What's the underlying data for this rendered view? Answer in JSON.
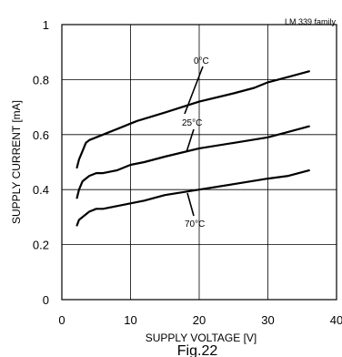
{
  "chart_data": {
    "type": "line",
    "title": "",
    "note": "LM 339 family",
    "caption": "Fig.22",
    "xlabel": "SUPPLY VOLTAGE [V]",
    "ylabel": "SUPPLY CURRENT [mA]",
    "xlim": [
      0,
      40
    ],
    "ylim": [
      0,
      1
    ],
    "xticks": [
      0,
      10,
      20,
      30,
      40
    ],
    "yticks": [
      0,
      0.2,
      0.4,
      0.6,
      0.8,
      1
    ],
    "xtick_labels": [
      "0",
      "10",
      "20",
      "30",
      "40"
    ],
    "ytick_labels": [
      "0",
      "0.2",
      "0.4",
      "0.6",
      "0.8",
      "1"
    ],
    "grid": true,
    "series": [
      {
        "name": "0°C",
        "x": [
          2.2,
          2.5,
          3,
          3.5,
          4,
          5,
          6,
          7,
          8,
          10,
          11,
          15,
          20,
          25,
          28,
          30,
          33,
          36
        ],
        "y": [
          0.48,
          0.51,
          0.54,
          0.57,
          0.58,
          0.59,
          0.6,
          0.61,
          0.62,
          0.64,
          0.65,
          0.68,
          0.72,
          0.75,
          0.77,
          0.79,
          0.81,
          0.83
        ]
      },
      {
        "name": "25°C",
        "x": [
          2.2,
          2.5,
          3,
          3.5,
          4,
          5,
          6,
          8,
          10,
          12,
          15,
          20,
          25,
          30,
          33,
          36
        ],
        "y": [
          0.37,
          0.4,
          0.43,
          0.44,
          0.45,
          0.46,
          0.46,
          0.47,
          0.49,
          0.5,
          0.52,
          0.55,
          0.57,
          0.59,
          0.61,
          0.63
        ]
      },
      {
        "name": "70°C",
        "x": [
          2.2,
          2.5,
          3,
          3.5,
          4,
          5,
          6,
          8,
          10,
          12,
          15,
          20,
          25,
          30,
          33,
          36
        ],
        "y": [
          0.27,
          0.29,
          0.3,
          0.31,
          0.32,
          0.33,
          0.33,
          0.34,
          0.35,
          0.36,
          0.38,
          0.4,
          0.42,
          0.44,
          0.45,
          0.47
        ]
      }
    ]
  }
}
